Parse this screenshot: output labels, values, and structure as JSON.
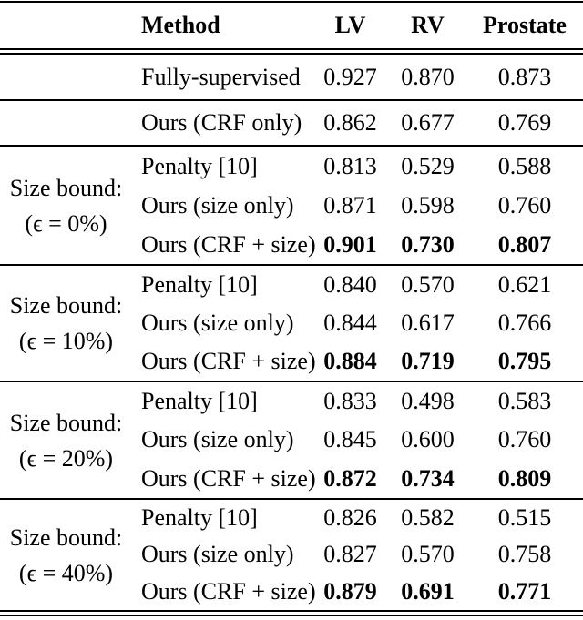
{
  "colors": {
    "background": "#ffffff",
    "text": "#000000",
    "rule": "#000000"
  },
  "table": {
    "headers": {
      "method": "Method",
      "lv": "LV",
      "rv": "RV",
      "prostate": "Prostate"
    },
    "standalone_rows": [
      {
        "method": "Fully-supervised",
        "lv": "0.927",
        "rv": "0.870",
        "prostate": "0.873"
      },
      {
        "method": "Ours (CRF only)",
        "lv": "0.862",
        "rv": "0.677",
        "prostate": "0.769"
      }
    ],
    "groups": [
      {
        "label_line1": "Size bound:",
        "label_line2": "(ϵ = 0%)",
        "rows": [
          {
            "method": "Penalty [10]",
            "lv": "0.813",
            "rv": "0.529",
            "prostate": "0.588"
          },
          {
            "method": "Ours (size only)",
            "lv": "0.871",
            "rv": "0.598",
            "prostate": "0.760"
          },
          {
            "method": "Ours (CRF + size)",
            "lv": "0.901",
            "rv": "0.730",
            "prostate": "0.807"
          }
        ]
      },
      {
        "label_line1": "Size bound:",
        "label_line2": "(ϵ = 10%)",
        "rows": [
          {
            "method": "Penalty [10]",
            "lv": "0.840",
            "rv": "0.570",
            "prostate": "0.621"
          },
          {
            "method": "Ours (size only)",
            "lv": "0.844",
            "rv": "0.617",
            "prostate": "0.766"
          },
          {
            "method": "Ours (CRF + size)",
            "lv": "0.884",
            "rv": "0.719",
            "prostate": "0.795"
          }
        ]
      },
      {
        "label_line1": "Size bound:",
        "label_line2": "(ϵ = 20%)",
        "rows": [
          {
            "method": "Penalty [10]",
            "lv": "0.833",
            "rv": "0.498",
            "prostate": "0.583"
          },
          {
            "method": "Ours (size only)",
            "lv": "0.845",
            "rv": "0.600",
            "prostate": "0.760"
          },
          {
            "method": "Ours (CRF + size)",
            "lv": "0.872",
            "rv": "0.734",
            "prostate": "0.809"
          }
        ]
      },
      {
        "label_line1": "Size bound:",
        "label_line2": "(ϵ = 40%)",
        "rows": [
          {
            "method": "Penalty [10]",
            "lv": "0.826",
            "rv": "0.582",
            "prostate": "0.515"
          },
          {
            "method": "Ours (size only)",
            "lv": "0.827",
            "rv": "0.570",
            "prostate": "0.758"
          },
          {
            "method": "Ours (CRF + size)",
            "lv": "0.879",
            "rv": "0.691",
            "prostate": "0.771"
          }
        ]
      }
    ]
  }
}
